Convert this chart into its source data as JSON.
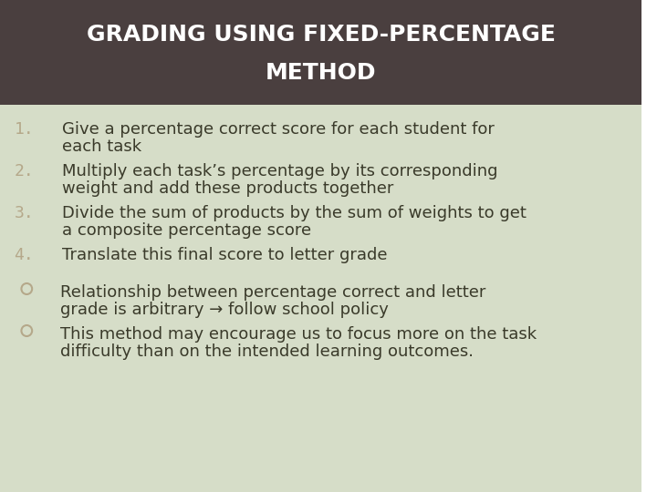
{
  "title_line1": "GRADING USING FIXED-PERCENTAGE",
  "title_line2": "METHOD",
  "title_bg_color": "#4a3f3f",
  "title_text_color": "#ffffff",
  "body_bg_color": "#d6ddc8",
  "numbered_items": [
    [
      "Give a percentage correct score for each student for",
      "each task"
    ],
    [
      "Multiply each task’s percentage by its corresponding",
      "weight and add these products together"
    ],
    [
      "Divide the sum of products by the sum of weights to get",
      "a composite percentage score"
    ],
    [
      "Translate this final score to letter grade"
    ]
  ],
  "bullet_items": [
    [
      "Relationship between percentage correct and letter",
      "grade is arbitrary → follow school policy"
    ],
    [
      "This method may encourage us to focus more on the task",
      "difficulty than on the intended learning outcomes."
    ]
  ],
  "number_color": "#b5a88a",
  "body_text_color": "#3a3a2a",
  "bullet_color": "#b5a88a",
  "font_size_title": 18,
  "font_size_body": 13,
  "outer_bg_color": "#ffffff"
}
